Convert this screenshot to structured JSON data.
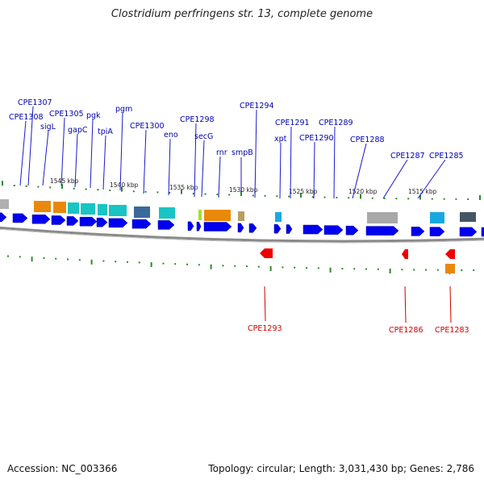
{
  "title": "Clostridium perfringens str. 13, complete genome",
  "footer": {
    "accession": "Accession: NC_003366",
    "summary": "Topology: circular; Length: 3,031,430 bp; Genes: 2,786"
  },
  "colors": {
    "forward_gene": "#0000ee",
    "reverse_gene": "#ee0000",
    "label_forward": "#0000aa",
    "label_reverse": "#cc0000",
    "tick": "#2a8a2a",
    "backbone": "#888888"
  },
  "ticks": [
    "1545 kbp",
    "1540 kbp",
    "1535 kbp",
    "1530 kbp",
    "1525 kbp",
    "1520 kbp",
    "1515 kbp"
  ],
  "forward_labels": [
    "CPE1307",
    "CPE1308",
    "sigL",
    "CPE1305",
    "gapC",
    "pgk",
    "tpiA",
    "pgm",
    "CPE1300",
    "eno",
    "CPE1298",
    "secG",
    "rnr",
    "smpB",
    "CPE1294",
    "xpt",
    "CPE1291",
    "CPE1290",
    "CPE1289",
    "CPE1288",
    "CPE1287",
    "CPE1285"
  ],
  "reverse_labels": [
    "CPE1293",
    "CPE1286",
    "CPE1283"
  ]
}
